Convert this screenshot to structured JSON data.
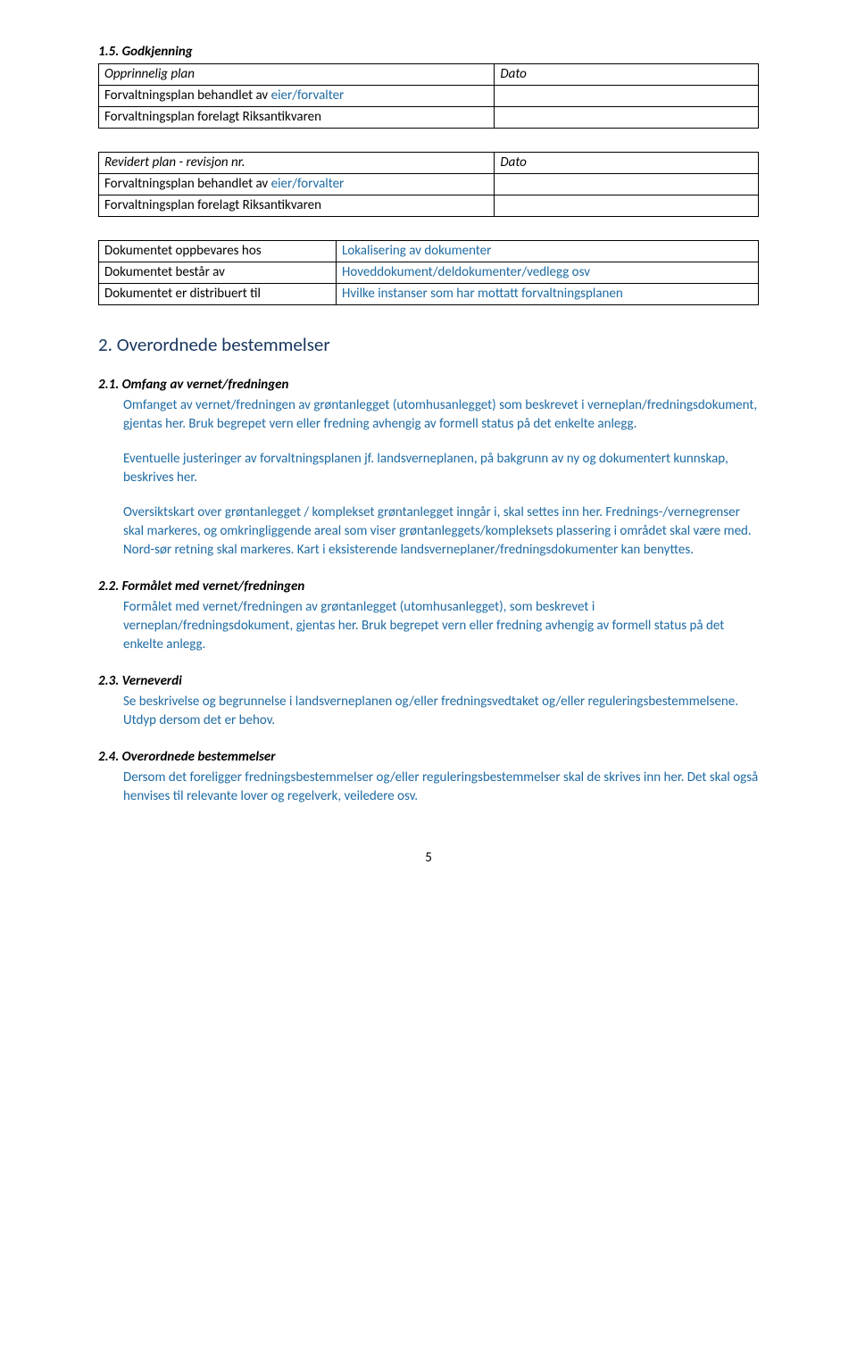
{
  "s15": {
    "heading": "1.5. Godkjenning",
    "table1": {
      "rows": [
        [
          "Opprinnelig plan",
          "Dato"
        ],
        [
          "Forvaltningsplan behandlet av eier/forvalter",
          ""
        ],
        [
          "Forvaltningsplan forelagt Riksantikvaren",
          ""
        ]
      ],
      "link_parts": [
        "Forvaltningsplan behandlet av ",
        "eier/forvalter"
      ]
    },
    "table2": {
      "rows": [
        [
          "Revidert plan - revisjon nr.",
          "Dato"
        ],
        [
          "Forvaltningsplan behandlet av eier/forvalter",
          ""
        ],
        [
          "Forvaltningsplan forelagt Riksantikvaren",
          ""
        ]
      ],
      "link_parts": [
        "Forvaltningsplan behandlet av ",
        "eier/forvalter"
      ]
    },
    "table3": {
      "rows": [
        [
          "Dokumentet oppbevares hos",
          "Lokalisering av dokumenter"
        ],
        [
          "Dokumentet består av",
          "Hoveddokument/deldokumenter/vedlegg osv"
        ],
        [
          "Dokumentet er distribuert til",
          "Hvilke instanser som har mottatt forvaltningsplanen"
        ]
      ]
    }
  },
  "s2": {
    "heading": "2. Overordnede bestemmelser"
  },
  "s21": {
    "heading": "2.1. Omfang av vernet/fredningen",
    "p1": "Omfanget av vernet/fredningen av grøntanlegget (utomhusanlegget) som beskrevet i verneplan/fredningsdokument, gjentas her. Bruk begrepet vern eller fredning avhengig av formell status på det enkelte anlegg.",
    "p2": "Eventuelle justeringer av forvaltningsplanen jf. landsverneplanen, på bakgrunn av ny og dokumentert kunnskap, beskrives her.",
    "p3a": "Oversiktskart over grøntanlegget / komplekset grøntanlegget inngår i, skal settes inn her.",
    "p3b": "Frednings-/vernegrenser skal markeres, og omkringliggende areal som viser grøntanleggets/kompleksets plassering i området skal være med. Nord-sør retning skal markeres. Kart i eksisterende landsverneplaner/fredningsdokumenter kan benyttes."
  },
  "s22": {
    "heading": "2.2. Formålet med vernet/fredningen",
    "p1": "Formålet med vernet/fredningen av grøntanlegget (utomhusanlegget), som beskrevet i verneplan/fredningsdokument, gjentas her. Bruk begrepet vern eller fredning avhengig av formell status på det enkelte anlegg."
  },
  "s23": {
    "heading": "2.3. Verneverdi",
    "p1": "Se beskrivelse og begrunnelse i landsverneplanen og/eller fredningsvedtaket og/eller reguleringsbestemmelsene. Utdyp dersom det er behov."
  },
  "s24": {
    "heading": "2.4. Overordnede bestemmelser",
    "p1": "Dersom det foreligger fredningsbestemmelser og/eller reguleringsbestemmelser skal de skrives inn her. Det skal også henvises til relevante lover og regelverk, veiledere osv."
  },
  "pagenum": "5"
}
